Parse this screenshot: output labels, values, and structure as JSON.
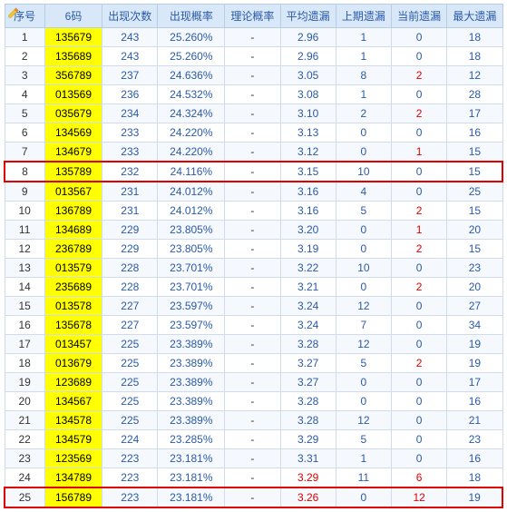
{
  "columns": [
    "序号",
    "6码",
    "出现次数",
    "出现概率",
    "理论概率",
    "平均遗漏",
    "上期遗漏",
    "当前遗漏",
    "最大遗漏"
  ],
  "highlight_rows": [
    7,
    24
  ],
  "colors": {
    "header_bg": "#d9e8f8",
    "header_text": "#2a5aa8",
    "border": "#b8cce4",
    "cell_border": "#d0dceb",
    "row_alt": "#f5f8fc",
    "code_bg": "#ffff00",
    "red": "#e00000",
    "blue": "#2a5aa8",
    "highlight_border": "#e00000"
  },
  "rows": [
    {
      "idx": 1,
      "code": "135679",
      "count": 243,
      "prob": "25.260%",
      "theo": "-",
      "avg": "2.96",
      "prev": 1,
      "cur": 0,
      "max": 18
    },
    {
      "idx": 2,
      "code": "135689",
      "count": 243,
      "prob": "25.260%",
      "theo": "-",
      "avg": "2.96",
      "prev": 1,
      "cur": 0,
      "max": 18
    },
    {
      "idx": 3,
      "code": "356789",
      "count": 237,
      "prob": "24.636%",
      "theo": "-",
      "avg": "3.05",
      "prev": 8,
      "cur": 2,
      "cur_red": true,
      "max": 12
    },
    {
      "idx": 4,
      "code": "013569",
      "count": 236,
      "prob": "24.532%",
      "theo": "-",
      "avg": "3.08",
      "prev": 1,
      "cur": 0,
      "max": 28
    },
    {
      "idx": 5,
      "code": "035679",
      "count": 234,
      "prob": "24.324%",
      "theo": "-",
      "avg": "3.10",
      "prev": 2,
      "cur": 2,
      "cur_red": true,
      "max": 17
    },
    {
      "idx": 6,
      "code": "134569",
      "count": 233,
      "prob": "24.220%",
      "theo": "-",
      "avg": "3.13",
      "prev": 0,
      "cur": 0,
      "max": 16
    },
    {
      "idx": 7,
      "code": "134679",
      "count": 233,
      "prob": "24.220%",
      "theo": "-",
      "avg": "3.12",
      "prev": 0,
      "cur": 1,
      "cur_red": true,
      "max": 15
    },
    {
      "idx": 8,
      "code": "135789",
      "count": 232,
      "prob": "24.116%",
      "theo": "-",
      "avg": "3.15",
      "prev": 10,
      "cur": 0,
      "max": 15
    },
    {
      "idx": 9,
      "code": "013567",
      "count": 231,
      "prob": "24.012%",
      "theo": "-",
      "avg": "3.16",
      "prev": 4,
      "cur": 0,
      "max": 25
    },
    {
      "idx": 10,
      "code": "136789",
      "count": 231,
      "prob": "24.012%",
      "theo": "-",
      "avg": "3.16",
      "prev": 5,
      "cur": 2,
      "cur_red": true,
      "max": 15
    },
    {
      "idx": 11,
      "code": "134689",
      "count": 229,
      "prob": "23.805%",
      "theo": "-",
      "avg": "3.20",
      "prev": 0,
      "cur": 1,
      "cur_red": true,
      "max": 20
    },
    {
      "idx": 12,
      "code": "236789",
      "count": 229,
      "prob": "23.805%",
      "theo": "-",
      "avg": "3.19",
      "prev": 0,
      "cur": 2,
      "cur_red": true,
      "max": 15
    },
    {
      "idx": 13,
      "code": "013579",
      "count": 228,
      "prob": "23.701%",
      "theo": "-",
      "avg": "3.22",
      "prev": 10,
      "cur": 0,
      "max": 23
    },
    {
      "idx": 14,
      "code": "235689",
      "count": 228,
      "prob": "23.701%",
      "theo": "-",
      "avg": "3.21",
      "prev": 0,
      "cur": 2,
      "cur_red": true,
      "max": 20
    },
    {
      "idx": 15,
      "code": "013578",
      "count": 227,
      "prob": "23.597%",
      "theo": "-",
      "avg": "3.24",
      "prev": 12,
      "cur": 0,
      "max": 27
    },
    {
      "idx": 16,
      "code": "135678",
      "count": 227,
      "prob": "23.597%",
      "theo": "-",
      "avg": "3.24",
      "prev": 7,
      "cur": 0,
      "max": 34
    },
    {
      "idx": 17,
      "code": "013457",
      "count": 225,
      "prob": "23.389%",
      "theo": "-",
      "avg": "3.28",
      "prev": 12,
      "cur": 0,
      "max": 19
    },
    {
      "idx": 18,
      "code": "013679",
      "count": 225,
      "prob": "23.389%",
      "theo": "-",
      "avg": "3.27",
      "prev": 5,
      "cur": 2,
      "cur_red": true,
      "max": 19
    },
    {
      "idx": 19,
      "code": "123689",
      "count": 225,
      "prob": "23.389%",
      "theo": "-",
      "avg": "3.27",
      "prev": 0,
      "cur": 0,
      "max": 17
    },
    {
      "idx": 20,
      "code": "134567",
      "count": 225,
      "prob": "23.389%",
      "theo": "-",
      "avg": "3.28",
      "prev": 0,
      "cur": 0,
      "max": 16
    },
    {
      "idx": 21,
      "code": "134578",
      "count": 225,
      "prob": "23.389%",
      "theo": "-",
      "avg": "3.28",
      "prev": 12,
      "cur": 0,
      "max": 21
    },
    {
      "idx": 22,
      "code": "134579",
      "count": 224,
      "prob": "23.285%",
      "theo": "-",
      "avg": "3.29",
      "prev": 5,
      "cur": 0,
      "max": 23
    },
    {
      "idx": 23,
      "code": "123569",
      "count": 223,
      "prob": "23.181%",
      "theo": "-",
      "avg": "3.31",
      "prev": 1,
      "cur": 0,
      "max": 16
    },
    {
      "idx": 24,
      "code": "134789",
      "count": 223,
      "prob": "23.181%",
      "theo": "-",
      "avg": "3.29",
      "avg_red": true,
      "prev": 11,
      "cur": 6,
      "cur_red": true,
      "max": 18
    },
    {
      "idx": 25,
      "code": "156789",
      "count": 223,
      "prob": "23.181%",
      "theo": "-",
      "avg": "3.26",
      "avg_red": true,
      "prev": 0,
      "cur": 12,
      "cur_red": true,
      "max": 19
    }
  ]
}
